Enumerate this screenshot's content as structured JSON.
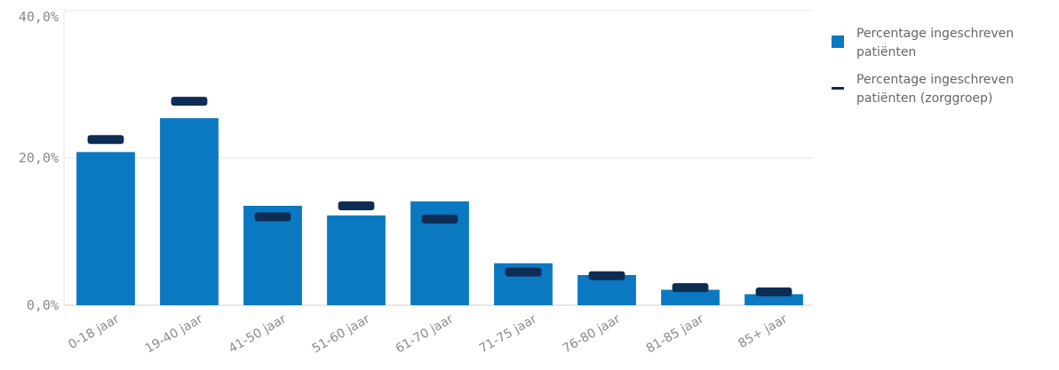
{
  "chart_data": {
    "type": "bar",
    "categories": [
      "0-18 jaar",
      "19-40 jaar",
      "41-50 jaar",
      "51-60 jaar",
      "61-70 jaar",
      "71-75 jaar",
      "76-80 jaar",
      "81-85 jaar",
      "85+ jaar"
    ],
    "series": [
      {
        "name": "Percentage ingeschreven patiënten",
        "mark": "bar",
        "color": "#0a79c1",
        "values": [
          20.8,
          25.4,
          13.5,
          12.2,
          14.1,
          5.7,
          4.1,
          2.1,
          1.5
        ]
      },
      {
        "name": "Percentage ingeschreven patiënten (zorggroep)",
        "mark": "marker",
        "color": "#0d2d55",
        "values": [
          22.5,
          27.7,
          12.0,
          13.5,
          11.7,
          4.5,
          4.0,
          2.4,
          1.8
        ]
      }
    ],
    "ylim": [
      0,
      40
    ],
    "yticks": [
      {
        "value": 0,
        "label": "0,0%"
      },
      {
        "value": 20,
        "label": "20,0%"
      },
      {
        "value": 40,
        "label": "40,0%"
      }
    ],
    "grid": true,
    "legend": "right",
    "xlabel": "",
    "ylabel": "",
    "title": ""
  },
  "legend": {
    "items": [
      {
        "label": "Percentage ingeschreven patiënten",
        "type": "square",
        "color": "#0a79c1"
      },
      {
        "label": "Percentage ingeschreven patiënten (zorggroep)",
        "type": "line",
        "color": "#0d2d55"
      }
    ]
  }
}
